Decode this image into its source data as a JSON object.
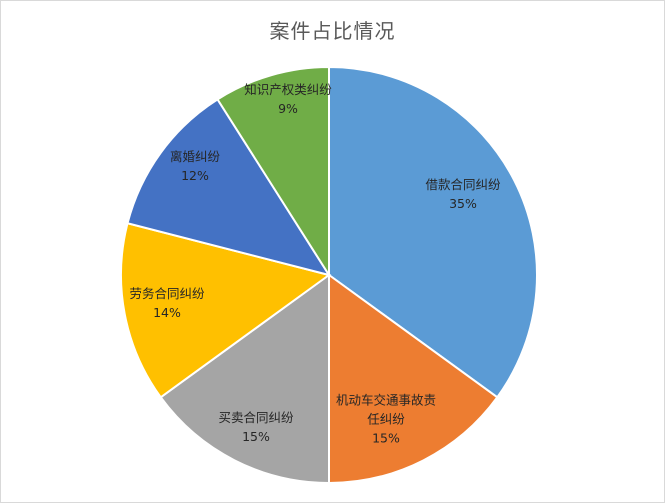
{
  "chart_data": {
    "type": "pie",
    "title": "案件占比情况",
    "start_angle_deg": 0,
    "direction": "clockwise",
    "slices": [
      {
        "name": "借款合同纠纷",
        "label_lines": [
          "借款合同纠纷"
        ],
        "percent_label": "35%",
        "value": 35,
        "color": "#5b9bd5"
      },
      {
        "name": "机动车交通事故责任纠纷",
        "label_lines": [
          "机动车交通事故责",
          "任纠纷"
        ],
        "percent_label": "15%",
        "value": 15,
        "color": "#ed7d31"
      },
      {
        "name": "买卖合同纠纷",
        "label_lines": [
          "买卖合同纠纷"
        ],
        "percent_label": "15%",
        "value": 15,
        "color": "#a5a5a5"
      },
      {
        "name": "劳务合同纠纷",
        "label_lines": [
          "劳务合同纠纷"
        ],
        "percent_label": "14%",
        "value": 14,
        "color": "#ffc000"
      },
      {
        "name": "离婚纠纷",
        "label_lines": [
          "离婚纠纷"
        ],
        "percent_label": "12%",
        "value": 12,
        "color": "#4472c4"
      },
      {
        "name": "知识产权类纠纷",
        "label_lines": [
          "知识产权类纠纷"
        ],
        "percent_label": "9%",
        "value": 9,
        "color": "#70ad47"
      }
    ]
  }
}
